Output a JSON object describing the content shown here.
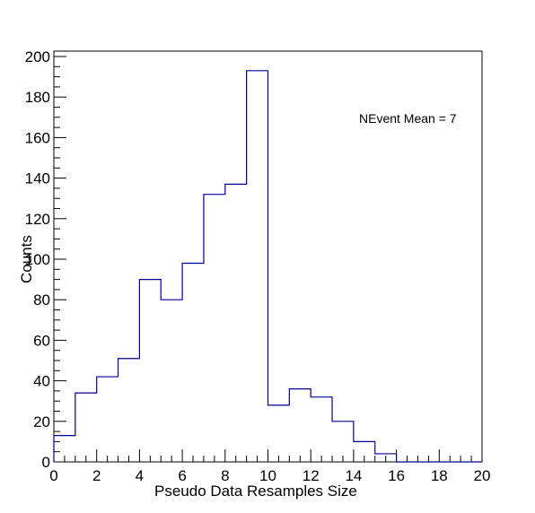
{
  "chart_data": {
    "type": "bar",
    "title": "",
    "xlabel": "Pseudo Data Resamples Size",
    "ylabel": "Counts",
    "xlim": [
      0,
      20
    ],
    "ylim": [
      0,
      200
    ],
    "bin_edges": [
      0,
      1,
      2,
      3,
      4,
      5,
      6,
      7,
      8,
      9,
      10,
      11,
      12,
      13,
      14,
      15,
      16,
      17,
      18,
      19,
      20
    ],
    "values": [
      13,
      34,
      42,
      51,
      90,
      80,
      98,
      132,
      137,
      193,
      28,
      36,
      32,
      20,
      10,
      4,
      0,
      0,
      0,
      0
    ],
    "x_ticks": [
      0,
      2,
      4,
      6,
      8,
      10,
      12,
      14,
      16,
      18,
      20
    ],
    "y_ticks": [
      0,
      20,
      40,
      60,
      80,
      100,
      120,
      140,
      160,
      180,
      200
    ],
    "x_tick_labels": [
      "0",
      "2",
      "4",
      "6",
      "8",
      "10",
      "12",
      "14",
      "16",
      "18",
      "20"
    ],
    "y_tick_labels": [
      "0",
      "20",
      "40",
      "60",
      "80",
      "100",
      "120",
      "140",
      "160",
      "180",
      "200"
    ],
    "annotation": "NEvent Mean = 7",
    "grid": false,
    "legend": "none",
    "colors": {
      "histogram": "#000099",
      "axes": "#000000"
    }
  }
}
